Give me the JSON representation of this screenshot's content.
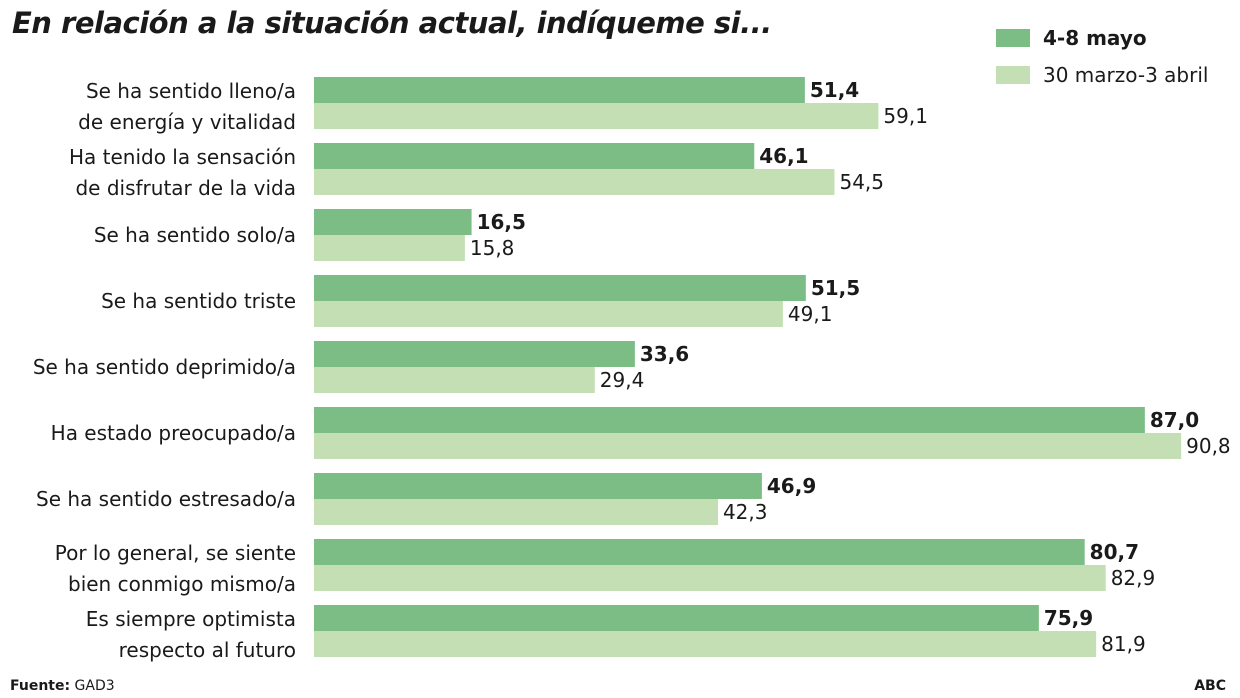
{
  "chart_data": {
    "type": "bar",
    "orientation": "horizontal",
    "title": "En relación a la situación actual, indíqueme si...",
    "categories": [
      [
        "Se ha sentido lleno/a",
        "de energía y vitalidad"
      ],
      [
        "Ha tenido la sensación",
        "de disfrutar de la vida"
      ],
      [
        "Se ha sentido solo/a"
      ],
      [
        "Se ha sentido triste"
      ],
      [
        "Se ha sentido deprimido/a"
      ],
      [
        "Ha estado preocupado/a"
      ],
      [
        "Se ha sentido estresado/a"
      ],
      [
        "Por lo general, se siente",
        "bien conmigo mismo/a"
      ],
      [
        "Es siempre optimista",
        "respecto al futuro"
      ]
    ],
    "series": [
      {
        "name": "4-8 mayo",
        "color": "#7bbd84",
        "values": [
          51.4,
          46.1,
          16.5,
          51.5,
          33.6,
          87.0,
          46.9,
          80.7,
          75.9
        ],
        "labels": [
          "51,4",
          "46,1",
          "16,5",
          "51,5",
          "33,6",
          "87,0",
          "46,9",
          "80,7",
          "75,9"
        ]
      },
      {
        "name": "30 marzo-3 abril",
        "color": "#c3dfb3",
        "values": [
          59.1,
          54.5,
          15.8,
          49.1,
          29.4,
          90.8,
          42.3,
          82.9,
          81.9
        ],
        "labels": [
          "59,1",
          "54,5",
          "15,8",
          "49,1",
          "29,4",
          "90,8",
          "42,3",
          "82,9",
          "81,9"
        ]
      }
    ],
    "legend_position": "top-right",
    "grid": false
  },
  "footer": {
    "source_label": "Fuente:",
    "source": "GAD3",
    "brand": "ABC"
  }
}
